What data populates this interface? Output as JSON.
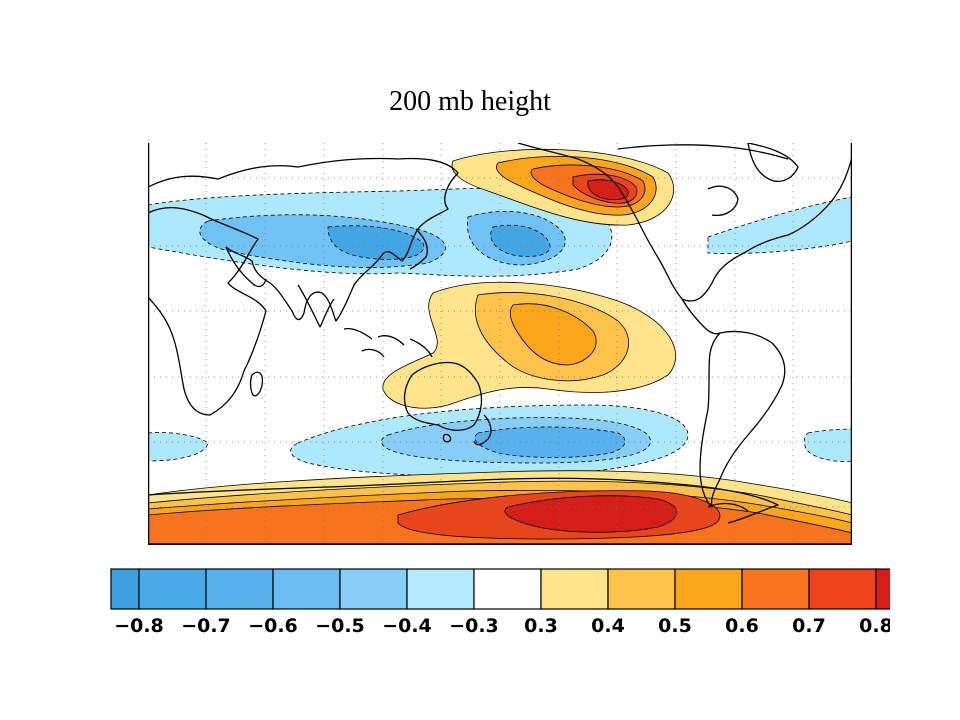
{
  "title": "200 mb height",
  "colorbar": {
    "labels": [
      "−0.8",
      "−0.7",
      "−0.6",
      "−0.5",
      "−0.4",
      "−0.3",
      "0.3",
      "0.4",
      "0.5",
      "0.6",
      "0.7",
      "0.8"
    ],
    "colors": [
      "#3b9fe0",
      "#4aa9e8",
      "#56b1ec",
      "#69bdf2",
      "#86cef8",
      "#b2e9fc",
      "#ffffff",
      "#fde389",
      "#fdc24a",
      "#fba51a",
      "#f7731d",
      "#f0421b",
      "#d81c16"
    ]
  },
  "map": {
    "projection": "equirectangular, Pacific-centered",
    "anomaly_colors": {
      "neg_light": "#aee8fc",
      "neg_mid": "#6fc2f3",
      "neg_strong": "#42a5e4",
      "pos_light": "#fde389",
      "pos_mid": "#fdc24a",
      "pos_strong": "#fba51a",
      "pos_orange": "#f7731d",
      "pos_red": "#e8451c",
      "pos_dark": "#d41e16"
    }
  }
}
